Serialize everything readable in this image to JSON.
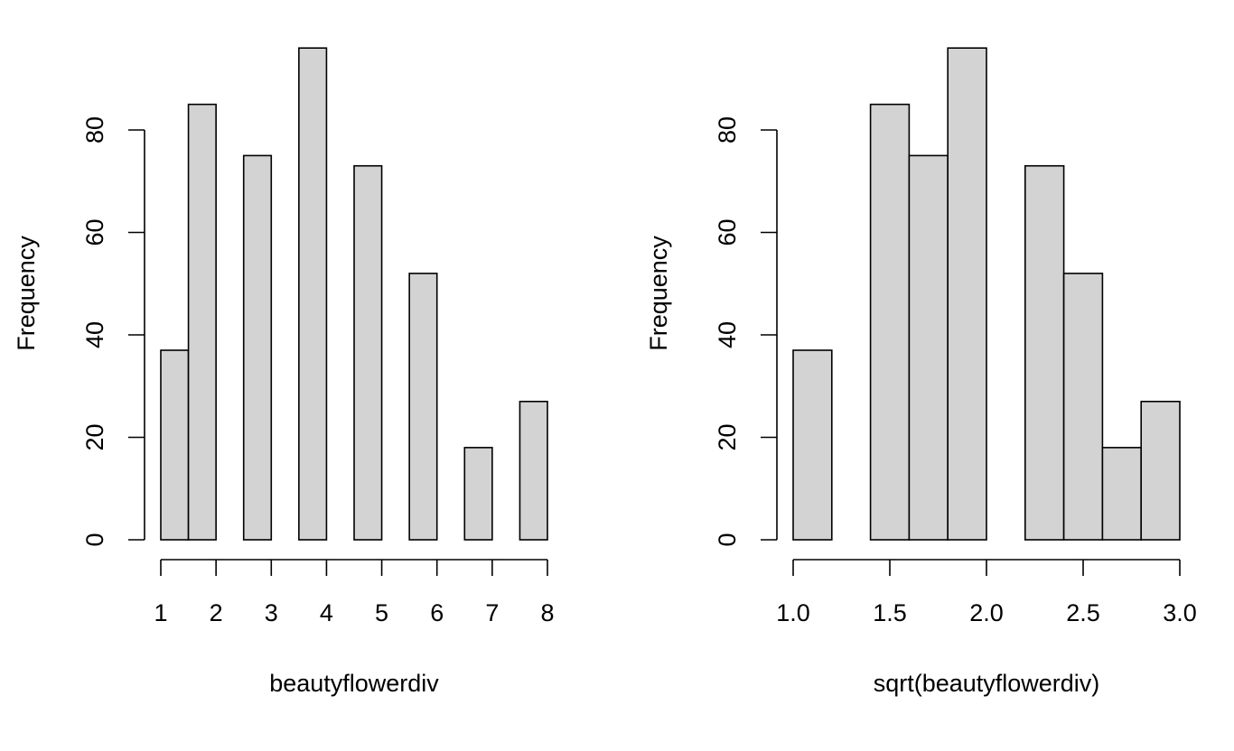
{
  "chart_data": [
    {
      "type": "bar",
      "title": "",
      "xlabel": "beautyflowerdiv",
      "ylabel": "Frequency",
      "bins": [
        {
          "x0": 1.0,
          "x1": 1.5,
          "count": 37
        },
        {
          "x0": 1.5,
          "x1": 2.0,
          "count": 85
        },
        {
          "x0": 2.0,
          "x1": 2.5,
          "count": 0
        },
        {
          "x0": 2.5,
          "x1": 3.0,
          "count": 75
        },
        {
          "x0": 3.0,
          "x1": 3.5,
          "count": 0
        },
        {
          "x0": 3.5,
          "x1": 4.0,
          "count": 96
        },
        {
          "x0": 4.0,
          "x1": 4.5,
          "count": 0
        },
        {
          "x0": 4.5,
          "x1": 5.0,
          "count": 73
        },
        {
          "x0": 5.0,
          "x1": 5.5,
          "count": 0
        },
        {
          "x0": 5.5,
          "x1": 6.0,
          "count": 52
        },
        {
          "x0": 6.0,
          "x1": 6.5,
          "count": 0
        },
        {
          "x0": 6.5,
          "x1": 7.0,
          "count": 18
        },
        {
          "x0": 7.0,
          "x1": 7.5,
          "count": 0
        },
        {
          "x0": 7.5,
          "x1": 8.0,
          "count": 27
        }
      ],
      "xticks": [
        1,
        2,
        3,
        4,
        5,
        6,
        7,
        8
      ],
      "xtick_labels": [
        "1",
        "2",
        "3",
        "4",
        "5",
        "6",
        "7",
        "8"
      ],
      "yticks": [
        0,
        20,
        40,
        60,
        80
      ],
      "ytick_labels": [
        "0",
        "20",
        "40",
        "60",
        "80"
      ],
      "xlim": [
        1,
        8
      ],
      "ylim": [
        0,
        96
      ],
      "grid": false
    },
    {
      "type": "bar",
      "title": "",
      "xlabel": "sqrt(beautyflowerdiv)",
      "ylabel": "Frequency",
      "bins": [
        {
          "x0": 1.0,
          "x1": 1.2,
          "count": 37
        },
        {
          "x0": 1.2,
          "x1": 1.4,
          "count": 0
        },
        {
          "x0": 1.4,
          "x1": 1.6,
          "count": 85
        },
        {
          "x0": 1.6,
          "x1": 1.8,
          "count": 75
        },
        {
          "x0": 1.8,
          "x1": 2.0,
          "count": 96
        },
        {
          "x0": 2.0,
          "x1": 2.2,
          "count": 0
        },
        {
          "x0": 2.2,
          "x1": 2.4,
          "count": 73
        },
        {
          "x0": 2.4,
          "x1": 2.6,
          "count": 52
        },
        {
          "x0": 2.6,
          "x1": 2.8,
          "count": 18
        },
        {
          "x0": 2.8,
          "x1": 3.0,
          "count": 27
        }
      ],
      "xticks": [
        1.0,
        1.5,
        2.0,
        2.5,
        3.0
      ],
      "xtick_labels": [
        "1.0",
        "1.5",
        "2.0",
        "2.5",
        "3.0"
      ],
      "yticks": [
        0,
        20,
        40,
        60,
        80
      ],
      "ytick_labels": [
        "0",
        "20",
        "40",
        "60",
        "80"
      ],
      "xlim": [
        1,
        3
      ],
      "ylim": [
        0,
        96
      ],
      "grid": false
    }
  ],
  "colors": {
    "bar_fill": "#d3d3d3",
    "bar_stroke": "#000000",
    "background": "#ffffff"
  }
}
